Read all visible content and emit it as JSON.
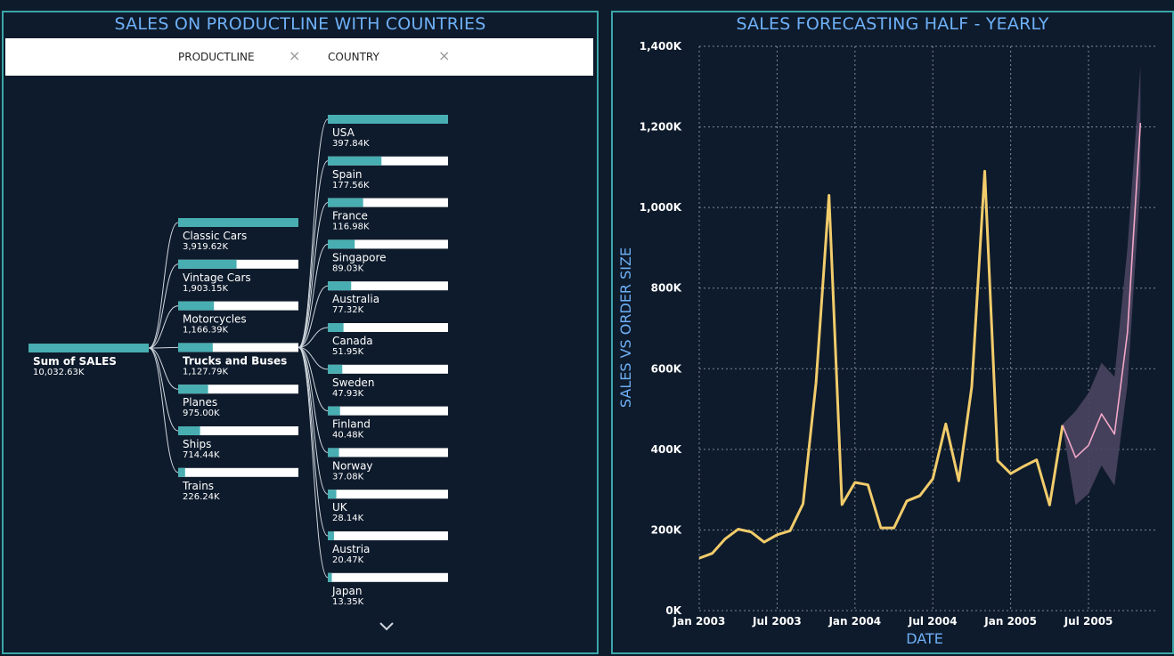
{
  "left": {
    "title": "SALES ON PRODUCTLINE WITH COUNTRIES",
    "filters": [
      {
        "label": "PRODUCTLINE",
        "clear": "×"
      },
      {
        "label": "COUNTRY",
        "clear": "×"
      }
    ],
    "root": {
      "label": "Sum of SALES",
      "value_text": "10,032.63K",
      "fraction": 1.0
    },
    "productlines": [
      {
        "label": "Classic Cars",
        "value_text": "3,919.62K",
        "value": 3919.62
      },
      {
        "label": "Vintage Cars",
        "value_text": "1,903.15K",
        "value": 1903.15
      },
      {
        "label": "Motorcycles",
        "value_text": "1,166.39K",
        "value": 1166.39
      },
      {
        "label": "Trucks and Buses",
        "value_text": "1,127.79K",
        "value": 1127.79,
        "selected": true
      },
      {
        "label": "Planes",
        "value_text": "975.00K",
        "value": 975.0
      },
      {
        "label": "Ships",
        "value_text": "714.44K",
        "value": 714.44
      },
      {
        "label": "Trains",
        "value_text": "226.24K",
        "value": 226.24
      }
    ],
    "countries": [
      {
        "label": "USA",
        "value_text": "397.84K",
        "value": 397.84
      },
      {
        "label": "Spain",
        "value_text": "177.56K",
        "value": 177.56
      },
      {
        "label": "France",
        "value_text": "116.98K",
        "value": 116.98
      },
      {
        "label": "Singapore",
        "value_text": "89.03K",
        "value": 89.03
      },
      {
        "label": "Australia",
        "value_text": "77.32K",
        "value": 77.32
      },
      {
        "label": "Canada",
        "value_text": "51.95K",
        "value": 51.95
      },
      {
        "label": "Sweden",
        "value_text": "47.93K",
        "value": 47.93
      },
      {
        "label": "Finland",
        "value_text": "40.48K",
        "value": 40.48
      },
      {
        "label": "Norway",
        "value_text": "37.08K",
        "value": 37.08
      },
      {
        "label": "UK",
        "value_text": "28.14K",
        "value": 28.14
      },
      {
        "label": "Austria",
        "value_text": "20.47K",
        "value": 20.47
      },
      {
        "label": "Japan",
        "value_text": "13.35K",
        "value": 13.35
      }
    ],
    "more_icon": "chevron-down-icon",
    "colors": {
      "bar_fill": "#48aeb1",
      "bar_track": "#ffffff",
      "link": "#cfd6dd"
    }
  },
  "chart_data": {
    "type": "line",
    "title": "SALES FORECASTING HALF - YEARLY",
    "xlabel": "DATE",
    "ylabel": "SALES VS ORDER SIZE",
    "x_ticks": [
      "Jan 2003",
      "Jul 2003",
      "Jan 2004",
      "Jul 2004",
      "Jan 2005",
      "Jul 2005"
    ],
    "y_ticks": [
      "0K",
      "200K",
      "400K",
      "600K",
      "800K",
      "1,000K",
      "1,200K",
      "1,400K"
    ],
    "ylim": [
      0,
      1400
    ],
    "xlim": [
      "Jan 2003",
      "Dec 2005"
    ],
    "grid": true,
    "series": [
      {
        "kind": "actual",
        "color": "#f2cc6b",
        "points": [
          [
            "Jan 2003",
            130
          ],
          [
            "Feb 2003",
            142
          ],
          [
            "Mar 2003",
            178
          ],
          [
            "Apr 2003",
            202
          ],
          [
            "May 2003",
            195
          ],
          [
            "Jun 2003",
            170
          ],
          [
            "Jul 2003",
            188
          ],
          [
            "Aug 2003",
            198
          ],
          [
            "Sep 2003",
            265
          ],
          [
            "Oct 2003",
            565
          ],
          [
            "Nov 2003",
            1030
          ],
          [
            "Dec 2003",
            263
          ],
          [
            "Jan 2004",
            318
          ],
          [
            "Feb 2004",
            312
          ],
          [
            "Mar 2004",
            205
          ],
          [
            "Apr 2004",
            205
          ],
          [
            "May 2004",
            272
          ],
          [
            "Jun 2004",
            285
          ],
          [
            "Jul 2004",
            327
          ],
          [
            "Aug 2004",
            463
          ],
          [
            "Sep 2004",
            322
          ],
          [
            "Oct 2004",
            555
          ],
          [
            "Nov 2004",
            1090
          ],
          [
            "Dec 2004",
            372
          ],
          [
            "Jan 2005",
            340
          ],
          [
            "Feb 2005",
            358
          ],
          [
            "Mar 2005",
            374
          ],
          [
            "Apr 2005",
            262
          ],
          [
            "May 2005",
            460
          ]
        ]
      },
      {
        "kind": "forecast",
        "color": "#f2a7c8",
        "points": [
          [
            "May 2005",
            460
          ],
          [
            "Jun 2005",
            380
          ],
          [
            "Jul 2005",
            410
          ],
          [
            "Aug 2005",
            488
          ],
          [
            "Sep 2005",
            438
          ],
          [
            "Oct 2005",
            690
          ],
          [
            "Nov 2005",
            1210
          ]
        ],
        "lower": [
          455,
          262,
          290,
          360,
          310,
          560,
          1060
        ],
        "upper": [
          462,
          495,
          540,
          615,
          580,
          900,
          1350
        ],
        "band_color": "#4a4560"
      }
    ]
  }
}
